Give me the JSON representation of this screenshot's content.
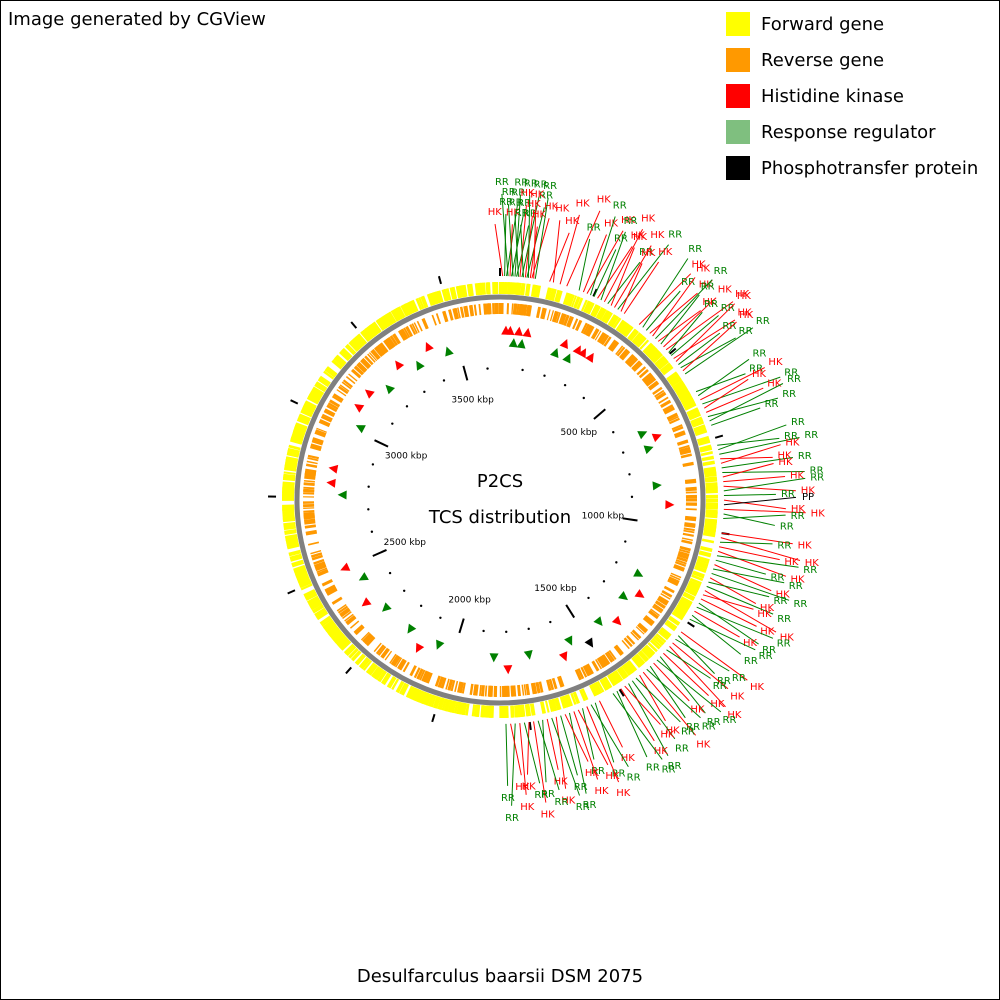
{
  "credit": "Image generated by CGView",
  "title_line1": "P2CS",
  "title_line2": "TCS distribution",
  "organism": "Desulfarculus baarsii DSM 2075",
  "legend": [
    {
      "label": "Forward gene",
      "color": "#ffff00"
    },
    {
      "label": "Reverse gene",
      "color": "#ff9900"
    },
    {
      "label": "Histidine kinase",
      "color": "#ff0000"
    },
    {
      "label": "Response regulator",
      "color": "#7fbf7f"
    },
    {
      "label": "Phosphotransfer protein",
      "color": "#000000"
    }
  ],
  "colors": {
    "HK": "#ff0000",
    "RR": "#008000",
    "PP": "#000000",
    "backbone": "#808080"
  },
  "genome_kbp": 3655,
  "ticks": [
    "500 kbp",
    "1000 kbp",
    "1500 kbp",
    "2000 kbp",
    "2500 kbp",
    "3000 kbp",
    "3500 kbp"
  ],
  "tick_positions_kbp": [
    500,
    1000,
    1500,
    2000,
    2500,
    3000,
    3500
  ],
  "features": [
    [
      "HK",
      7
    ],
    [
      "RR",
      12
    ],
    [
      "RR",
      17
    ],
    [
      "RR",
      21
    ],
    [
      "HK",
      26
    ],
    [
      "RR",
      30
    ],
    [
      "RR",
      34
    ],
    [
      "RR",
      39
    ],
    [
      "RR",
      43
    ],
    [
      "RR",
      48
    ],
    [
      "HK",
      52
    ],
    [
      "RR",
      57
    ],
    [
      "RR",
      61
    ],
    [
      "HK",
      66
    ],
    [
      "RR",
      70
    ],
    [
      "RR",
      74
    ],
    [
      "HK",
      79
    ],
    [
      "HK",
      83
    ],
    [
      "HK",
      88
    ],
    [
      "RR",
      92
    ],
    [
      "HK",
      130
    ],
    [
      "HK",
      140
    ],
    [
      "HK",
      158
    ],
    [
      "HK",
      176
    ],
    [
      "RR",
      210
    ],
    [
      "HK",
      222
    ],
    [
      "HK",
      232
    ],
    [
      "RR",
      242
    ],
    [
      "RR",
      252
    ],
    [
      "HK",
      262
    ],
    [
      "RR",
      272
    ],
    [
      "HK",
      282
    ],
    [
      "RR",
      292
    ],
    [
      "HK",
      302
    ],
    [
      "HK",
      312
    ],
    [
      "RR",
      322
    ],
    [
      "HK",
      332
    ],
    [
      "HK",
      342
    ],
    [
      "HK",
      390
    ],
    [
      "RR",
      402
    ],
    [
      "RR",
      414
    ],
    [
      "HK",
      426
    ],
    [
      "HK",
      436
    ],
    [
      "RR",
      446
    ],
    [
      "HK",
      456
    ],
    [
      "RR",
      466
    ],
    [
      "HK",
      476
    ],
    [
      "HK",
      486
    ],
    [
      "RR",
      496
    ],
    [
      "RR",
      506
    ],
    [
      "HK",
      516
    ],
    [
      "HK",
      526
    ],
    [
      "RR",
      536
    ],
    [
      "RR",
      546
    ],
    [
      "HK",
      556
    ],
    [
      "RR",
      566
    ],
    [
      "RR",
      620
    ],
    [
      "RR",
      632
    ],
    [
      "HK",
      644
    ],
    [
      "RR",
      656
    ],
    [
      "HK",
      668
    ],
    [
      "HK",
      680
    ],
    [
      "RR",
      692
    ],
    [
      "RR",
      704
    ],
    [
      "RR",
      716
    ],
    [
      "RR",
      770
    ],
    [
      "RR",
      782
    ],
    [
      "RR",
      794
    ],
    [
      "HK",
      806
    ],
    [
      "HK",
      818
    ],
    [
      "RR",
      830
    ],
    [
      "RR",
      842
    ],
    [
      "HK",
      854
    ],
    [
      "HK",
      866
    ],
    [
      "HK",
      878
    ],
    [
      "RR",
      890
    ],
    [
      "RR",
      902
    ],
    [
      "HK",
      914
    ],
    [
      "PP",
      926
    ],
    [
      "HK",
      938
    ],
    [
      "RR",
      950
    ],
    [
      "RR",
      962
    ],
    [
      "HK",
      1000
    ],
    [
      "HK",
      1012
    ],
    [
      "RR",
      1024
    ],
    [
      "HK",
      1036
    ],
    [
      "HK",
      1048
    ],
    [
      "RR",
      1060
    ],
    [
      "RR",
      1072
    ],
    [
      "HK",
      1084
    ],
    [
      "RR",
      1096
    ],
    [
      "RR",
      1108
    ],
    [
      "HK",
      1120
    ],
    [
      "RR",
      1132
    ],
    [
      "RR",
      1144
    ],
    [
      "HK",
      1156
    ],
    [
      "HK",
      1168
    ],
    [
      "HK",
      1180
    ],
    [
      "RR",
      1192
    ],
    [
      "RR",
      1204
    ],
    [
      "HK",
      1216
    ],
    [
      "RR",
      1228
    ],
    [
      "RR",
      1240
    ],
    [
      "HK",
      1280
    ],
    [
      "RR",
      1292
    ],
    [
      "RR",
      1304
    ],
    [
      "HK",
      1316
    ],
    [
      "HK",
      1328
    ],
    [
      "RR",
      1340
    ],
    [
      "HK",
      1352
    ],
    [
      "RR",
      1364
    ],
    [
      "RR",
      1376
    ],
    [
      "HK",
      1388
    ],
    [
      "RR",
      1400
    ],
    [
      "RR",
      1412
    ],
    [
      "HK",
      1424
    ],
    [
      "HK",
      1436
    ],
    [
      "RR",
      1448
    ],
    [
      "RR",
      1460
    ],
    [
      "RR",
      1472
    ],
    [
      "HK",
      1484
    ],
    [
      "HK",
      1496
    ],
    [
      "RR",
      1508
    ],
    [
      "RR",
      1520
    ],
    [
      "HK",
      1560
    ],
    [
      "RR",
      1572
    ],
    [
      "RR",
      1584
    ],
    [
      "HK",
      1596
    ],
    [
      "RR",
      1608
    ],
    [
      "HK",
      1620
    ],
    [
      "HK",
      1632
    ],
    [
      "RR",
      1644
    ],
    [
      "HK",
      1656
    ],
    [
      "RR",
      1668
    ],
    [
      "HK",
      1680
    ],
    [
      "RR",
      1692
    ],
    [
      "HK",
      1704
    ],
    [
      "RR",
      1716
    ],
    [
      "RR",
      1728
    ],
    [
      "HK",
      1740
    ],
    [
      "HK",
      1752
    ],
    [
      "RR",
      1764
    ],
    [
      "HK",
      1776
    ],
    [
      "RR",
      1788
    ],
    [
      "HK",
      1800
    ],
    [
      "RR",
      1812
    ]
  ],
  "inner_marks": [
    {
      "kbp": 20,
      "type": "HK"
    },
    {
      "kbp": 35,
      "type": "HK"
    },
    {
      "kbp": 50,
      "type": "RR"
    },
    {
      "kbp": 65,
      "type": "HK"
    },
    {
      "kbp": 80,
      "type": "RR"
    },
    {
      "kbp": 95,
      "type": "HK"
    },
    {
      "kbp": 210,
      "type": "RR"
    },
    {
      "kbp": 230,
      "type": "HK"
    },
    {
      "kbp": 260,
      "type": "RR"
    },
    {
      "kbp": 280,
      "type": "HK"
    },
    {
      "kbp": 300,
      "type": "HK"
    },
    {
      "kbp": 330,
      "type": "HK"
    },
    {
      "kbp": 660,
      "type": "RR"
    },
    {
      "kbp": 690,
      "type": "HK"
    },
    {
      "kbp": 720,
      "type": "RR"
    },
    {
      "kbp": 860,
      "type": "RR"
    },
    {
      "kbp": 930,
      "type": "HK"
    },
    {
      "kbp": 1200,
      "type": "RR"
    },
    {
      "kbp": 1260,
      "type": "HK"
    },
    {
      "kbp": 1300,
      "type": "RR"
    },
    {
      "kbp": 1380,
      "type": "HK"
    },
    {
      "kbp": 1430,
      "type": "RR"
    },
    {
      "kbp": 1500,
      "type": "PP"
    },
    {
      "kbp": 1560,
      "type": "RR"
    },
    {
      "kbp": 1600,
      "type": "HK"
    },
    {
      "kbp": 1720,
      "type": "RR"
    },
    {
      "kbp": 1800,
      "type": "HK"
    },
    {
      "kbp": 1850,
      "type": "RR"
    },
    {
      "kbp": 2060,
      "type": "RR"
    },
    {
      "kbp": 2120,
      "type": "HK"
    },
    {
      "kbp": 2180,
      "type": "RR"
    },
    {
      "kbp": 2300,
      "type": "RR"
    },
    {
      "kbp": 2360,
      "type": "HK"
    },
    {
      "kbp": 2440,
      "type": "RR"
    },
    {
      "kbp": 2500,
      "type": "HK"
    },
    {
      "kbp": 2760,
      "type": "RR"
    },
    {
      "kbp": 2800,
      "type": "HK"
    },
    {
      "kbp": 2850,
      "type": "HK"
    },
    {
      "kbp": 3020,
      "type": "RR"
    },
    {
      "kbp": 3080,
      "type": "HK"
    },
    {
      "kbp": 3140,
      "type": "HK"
    },
    {
      "kbp": 3200,
      "type": "RR"
    },
    {
      "kbp": 3280,
      "type": "HK"
    },
    {
      "kbp": 3340,
      "type": "RR"
    },
    {
      "kbp": 3400,
      "type": "HK"
    },
    {
      "kbp": 3460,
      "type": "RR"
    }
  ]
}
